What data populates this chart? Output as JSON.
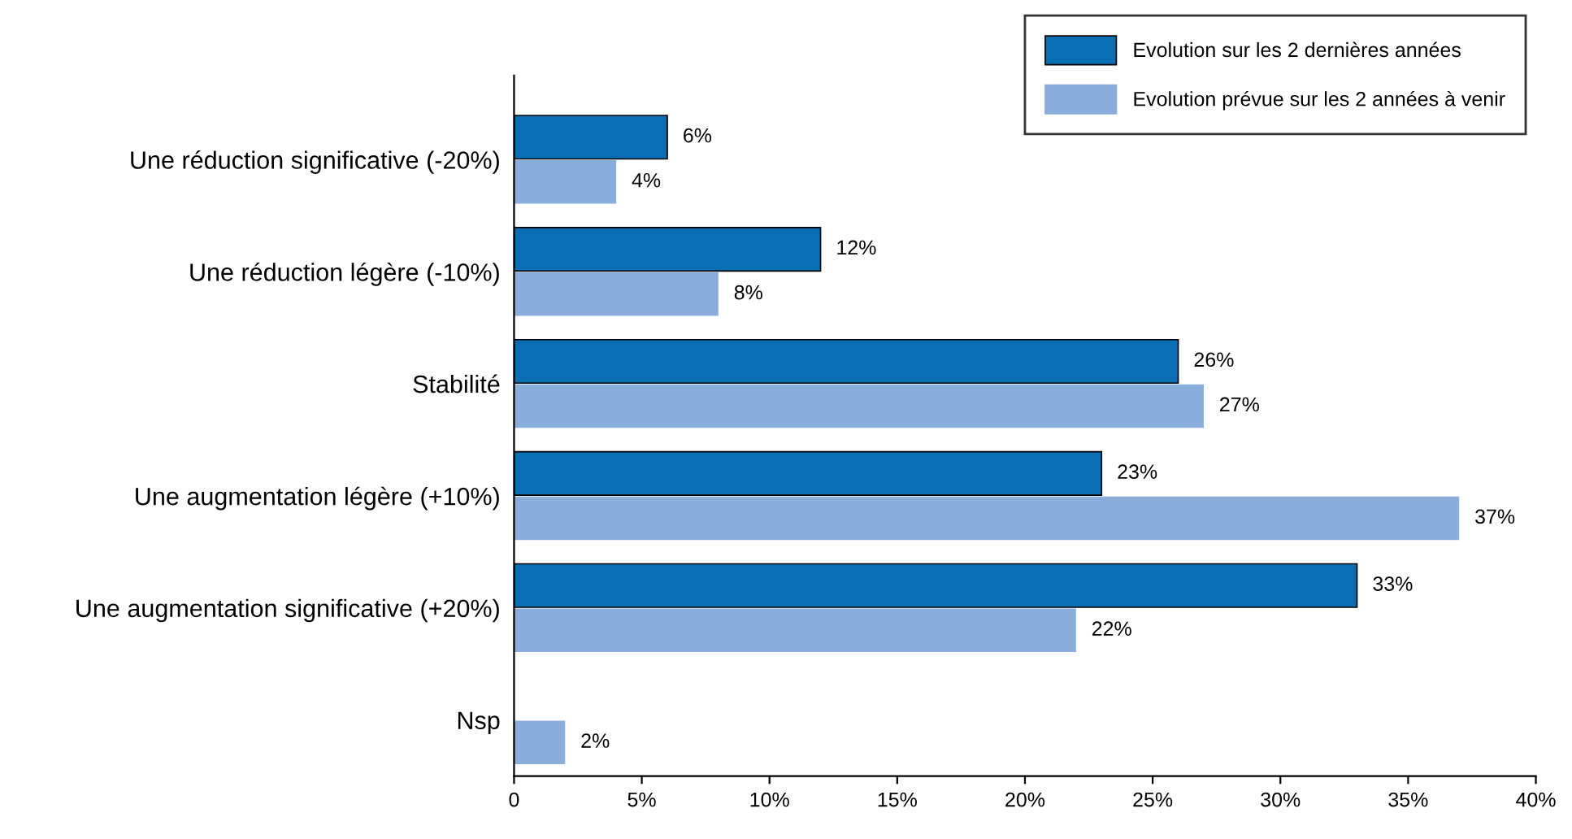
{
  "chart_data": {
    "type": "bar",
    "orientation": "horizontal",
    "categories": [
      "Une réduction significative (-20%)",
      "Une réduction légère (-10%)",
      "Stabilité",
      "Une augmentation légère (+10%)",
      "Une augmentation significative (+20%)",
      "Nsp"
    ],
    "series": [
      {
        "name": "Evolution sur les 2 dernières années",
        "color": "#0a6eb4",
        "values": [
          6,
          12,
          26,
          23,
          33,
          null
        ],
        "value_labels": [
          "6%",
          "12%",
          "26%",
          "23%",
          "33%",
          null
        ]
      },
      {
        "name": "Evolution prévue sur les 2 années à venir",
        "color": "#8aaedb",
        "values": [
          4,
          8,
          27,
          37,
          22,
          2
        ],
        "value_labels": [
          "4%",
          "8%",
          "27%",
          "37%",
          "22%",
          "2%"
        ]
      }
    ],
    "xlim": [
      0,
      40
    ],
    "xticks": [
      0,
      {
        "value": 5,
        "label": "5%"
      },
      {
        "value": 10,
        "label": "10%"
      },
      {
        "value": 15,
        "label": "15%"
      },
      {
        "value": 20,
        "label": "20%"
      },
      {
        "value": 25,
        "label": "25%"
      },
      {
        "value": 30,
        "label": "30%"
      },
      {
        "value": 35,
        "label": "35%"
      },
      {
        "value": 40,
        "label": "40%"
      }
    ],
    "grid": false,
    "legend": "top right"
  }
}
